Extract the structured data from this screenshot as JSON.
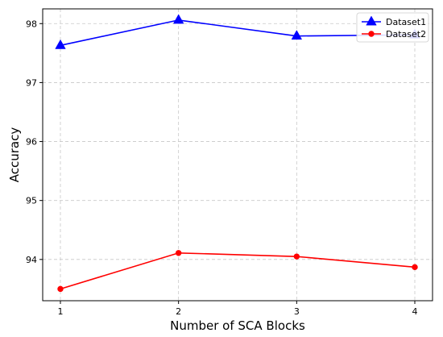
{
  "chart_data": {
    "type": "line",
    "title": "",
    "xlabel": "Number of SCA Blocks",
    "ylabel": "Accuracy",
    "x": [
      1,
      2,
      3,
      4
    ],
    "xlim": [
      0.85,
      4.15
    ],
    "ylim": [
      93.3,
      98.25
    ],
    "xticks": [
      "1",
      "2",
      "3",
      "4"
    ],
    "yticks": [
      "94",
      "95",
      "96",
      "97",
      "98"
    ],
    "grid": true,
    "legend_position": "top-right",
    "series": [
      {
        "name": "Dataset1",
        "color": "#0000ff",
        "marker": "triangle",
        "values": [
          97.63,
          98.06,
          97.79,
          97.81
        ]
      },
      {
        "name": "Dataset2",
        "color": "#ff0000",
        "marker": "circle",
        "values": [
          93.5,
          94.11,
          94.05,
          93.87
        ]
      }
    ]
  }
}
